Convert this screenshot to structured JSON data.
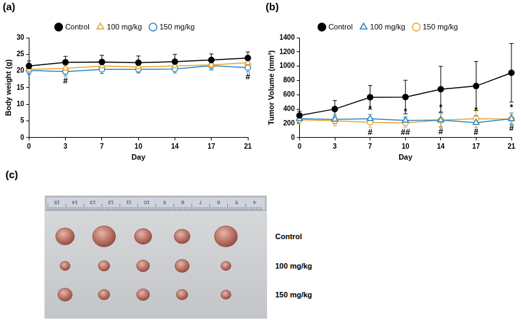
{
  "chart_data": [
    {
      "type": "line",
      "title": "(a)",
      "x_label": "Day",
      "y_label": "Body weight (g)",
      "categories": [
        0,
        3,
        7,
        10,
        14,
        17,
        21
      ],
      "ylim": [
        0,
        30
      ],
      "yticks": [
        0,
        5,
        10,
        15,
        20,
        25,
        30
      ],
      "grid": false,
      "legend": "top",
      "series": [
        {
          "name": "Control",
          "color": "#000000",
          "marker": "circle",
          "line_style": "solid",
          "values": [
            21.5,
            22.6,
            22.7,
            22.5,
            22.8,
            23.3,
            23.9
          ],
          "error": [
            1.5,
            1.8,
            2.0,
            2.0,
            2.2,
            1.8,
            1.8
          ]
        },
        {
          "name": "100 mg/kg",
          "color": "#E5A632",
          "marker": "triangle-open",
          "line_style": "solid",
          "values": [
            20.5,
            20.8,
            21.5,
            21.2,
            21.5,
            21.8,
            22.5
          ],
          "error": [
            1.4,
            1.5,
            1.5,
            1.4,
            1.5,
            1.4,
            1.5
          ]
        },
        {
          "name": "150 mg/kg",
          "color": "#2E86C1",
          "marker": "circle-open",
          "line_style": "solid",
          "values": [
            20.2,
            19.8,
            20.5,
            20.5,
            20.6,
            21.6,
            21.0
          ],
          "error": [
            1.2,
            1.3,
            1.3,
            1.1,
            1.2,
            1.3,
            1.3
          ]
        }
      ],
      "annotations": [
        {
          "series": "150 mg/kg",
          "x": 3,
          "text": "#"
        },
        {
          "series": "150 mg/kg",
          "x": 21,
          "text": "#"
        }
      ]
    },
    {
      "type": "line",
      "title": "(b)",
      "x_label": "Day",
      "y_label": "Tumor Volume (mm³)",
      "categories": [
        0,
        3,
        7,
        10,
        14,
        17,
        21
      ],
      "ylim": [
        0,
        1400
      ],
      "yticks": [
        0,
        200,
        400,
        600,
        800,
        1000,
        1200,
        1400
      ],
      "grid": false,
      "legend": "top",
      "series": [
        {
          "name": "Control",
          "color": "#000000",
          "marker": "circle",
          "line_style": "solid",
          "values": [
            310,
            400,
            565,
            568,
            678,
            722,
            908
          ],
          "error": [
            60,
            120,
            165,
            235,
            320,
            345,
            410
          ]
        },
        {
          "name": "100 mg/kg",
          "color": "#2E86C1",
          "marker": "triangle-open",
          "line_style": "solid",
          "values": [
            265,
            255,
            265,
            240,
            245,
            210,
            265
          ],
          "error": [
            40,
            60,
            60,
            50,
            100,
            100,
            80
          ]
        },
        {
          "name": "150 mg/kg",
          "color": "#E5A632",
          "marker": "circle-open",
          "line_style": "solid",
          "values": [
            250,
            235,
            215,
            205,
            245,
            265,
            260
          ],
          "error": [
            60,
            70,
            70,
            60,
            90,
            120,
            60
          ]
        }
      ],
      "annotations": [
        {
          "series": "100 mg/kg",
          "x": 7,
          "text": "*"
        },
        {
          "series": "100 mg/kg",
          "x": 10,
          "text": "*"
        },
        {
          "series": "100 mg/kg",
          "x": 14,
          "text": "*"
        },
        {
          "series": "100 mg/kg",
          "x": 17,
          "text": "*"
        },
        {
          "series": "100 mg/kg",
          "x": 21,
          "text": "*"
        },
        {
          "series": "150 mg/kg",
          "x": 7,
          "text": "#"
        },
        {
          "series": "150 mg/kg",
          "x": 10,
          "text": "##"
        },
        {
          "series": "150 mg/kg",
          "x": 14,
          "text": "#"
        },
        {
          "series": "150 mg/kg",
          "x": 17,
          "text": "#"
        },
        {
          "series": "150 mg/kg",
          "x": 21,
          "text": "#"
        }
      ]
    }
  ],
  "photo_panel": {
    "label": "(c)",
    "ruler_labels": [
      15,
      14,
      13,
      12,
      11,
      10,
      9,
      8,
      7,
      6,
      5,
      4
    ],
    "rows": [
      "Control",
      "100 mg/kg",
      "150 mg/kg"
    ]
  }
}
